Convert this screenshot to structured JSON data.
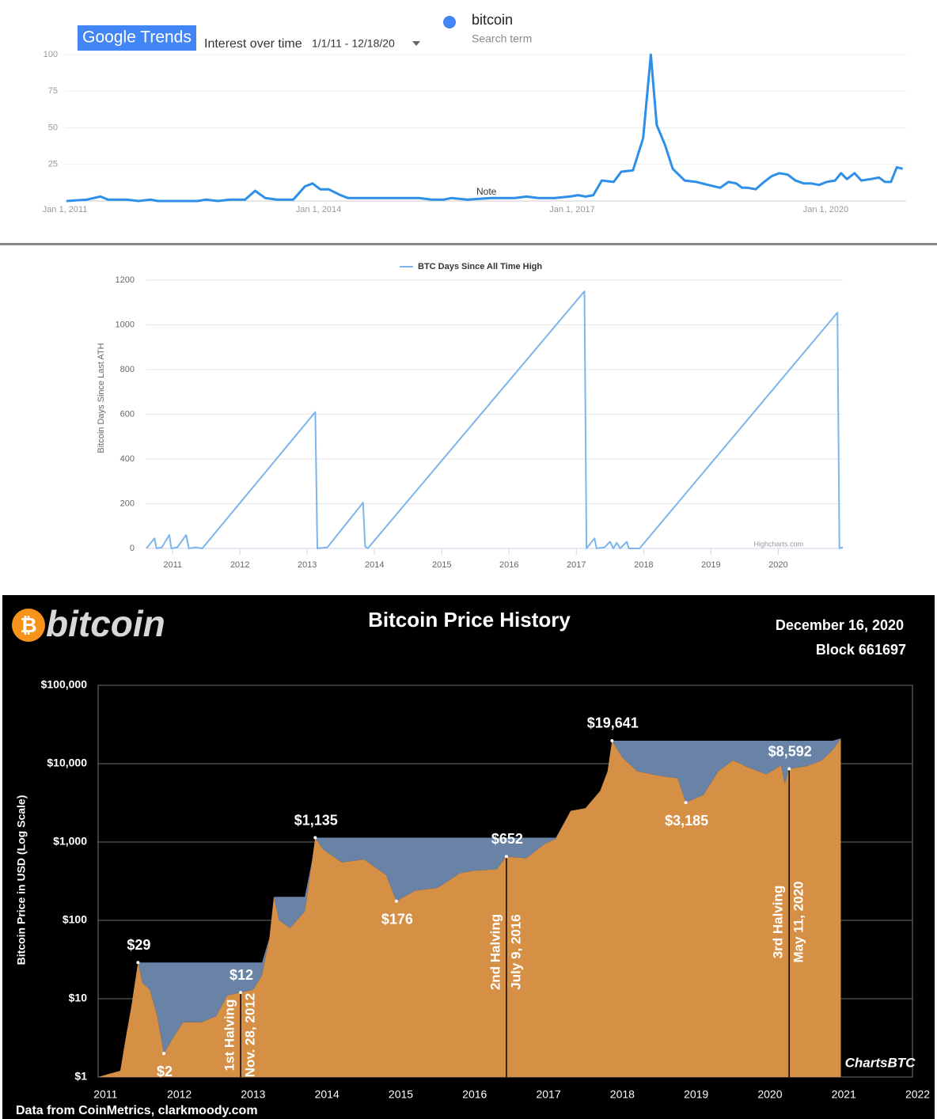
{
  "chart_data": [
    {
      "type": "line",
      "brand": "Google Trends",
      "title": "Interest over time",
      "subtitle": "1/1/11 - 12/18/20",
      "legend_caption": "Search term",
      "annotation": "Note",
      "x": [
        2011.02,
        2011.26,
        2011.42,
        2011.51,
        2011.73,
        2011.87,
        2012.01,
        2012.1,
        2012.57,
        2012.67,
        2012.81,
        2012.95,
        2013.13,
        2013.25,
        2013.37,
        2013.51,
        2013.7,
        2013.84,
        2013.93,
        2014.02,
        2014.12,
        2014.26,
        2014.35,
        2014.91,
        2015.19,
        2015.34,
        2015.48,
        2015.57,
        2015.76,
        2016.04,
        2016.32,
        2016.46,
        2016.6,
        2016.79,
        2016.97,
        2017.07,
        2017.16,
        2017.25,
        2017.35,
        2017.49,
        2017.58,
        2017.72,
        2017.84,
        2017.93,
        2018.0,
        2018.1,
        2018.19,
        2018.33,
        2018.47,
        2018.61,
        2018.75,
        2018.85,
        2018.94,
        2019.01,
        2019.08,
        2019.17,
        2019.27,
        2019.36,
        2019.45,
        2019.55,
        2019.64,
        2019.74,
        2019.83,
        2019.92,
        2020.01,
        2020.11,
        2020.18,
        2020.25,
        2020.34,
        2020.42,
        2020.53,
        2020.63,
        2020.7,
        2020.77,
        2020.84,
        2020.91
      ],
      "series": [
        {
          "name": "bitcoin",
          "color": "#2d8fe8",
          "values": [
            0,
            1,
            3,
            1,
            1,
            0,
            1,
            0,
            0,
            1,
            0,
            1,
            1,
            7,
            2,
            1,
            1,
            10,
            12,
            8,
            8,
            4,
            2,
            2,
            2,
            1,
            1,
            2,
            1,
            2,
            2,
            3,
            2,
            2,
            3,
            4,
            3,
            4,
            14,
            13,
            20,
            21,
            43,
            100,
            52,
            38,
            22,
            14,
            13,
            11,
            9,
            13,
            12,
            9,
            9,
            8,
            13,
            17,
            19,
            18,
            14,
            12,
            12,
            11,
            13,
            14,
            19,
            15,
            19,
            14,
            15,
            16,
            13,
            13,
            23,
            22
          ]
        }
      ],
      "xlim": [
        2011,
        2020.95
      ],
      "ylim": [
        0,
        100
      ],
      "yticks": [
        25,
        50,
        75,
        100
      ],
      "xticks": [
        {
          "value": 2011,
          "label": "Jan 1, 2011"
        },
        {
          "value": 2014,
          "label": "Jan 1, 2014"
        },
        {
          "value": 2017,
          "label": "Jan 1, 2017"
        },
        {
          "value": 2020,
          "label": "Jan 1, 2020"
        }
      ],
      "grid": true
    },
    {
      "type": "line",
      "ylabel": "Bitcoin Days Since Last ATH",
      "credit": "Highcharts.com",
      "x": [
        2010.61,
        2010.73,
        2010.76,
        2010.84,
        2010.95,
        2010.98,
        2011.07,
        2011.2,
        2011.24,
        2011.34,
        2011.44,
        2013.12,
        2013.15,
        2013.3,
        2013.83,
        2013.86,
        2013.9,
        2017.12,
        2017.15,
        2017.27,
        2017.3,
        2017.42,
        2017.5,
        2017.55,
        2017.6,
        2017.65,
        2017.75,
        2017.78,
        2017.94,
        2020.88,
        2020.91,
        2020.96
      ],
      "series": [
        {
          "name": "BTC Days Since All Time High",
          "color": "#7cb5ec",
          "values": [
            0,
            45,
            0,
            5,
            60,
            0,
            5,
            60,
            0,
            5,
            0,
            610,
            0,
            5,
            205,
            10,
            0,
            1150,
            0,
            45,
            0,
            5,
            30,
            0,
            25,
            0,
            30,
            0,
            0,
            1055,
            0,
            5
          ]
        }
      ],
      "xlim": [
        2010.61,
        2020.96
      ],
      "ylim": [
        0,
        1200
      ],
      "yticks": [
        0,
        200,
        400,
        600,
        800,
        1000,
        1200
      ],
      "xticks": [
        2011,
        2012,
        2013,
        2014,
        2015,
        2016,
        2017,
        2018,
        2019,
        2020
      ],
      "grid": true
    },
    {
      "type": "area",
      "log_scale": true,
      "logo_symbol": "₿",
      "logo_text": "bitcoin",
      "title": "Bitcoin Price History",
      "date": "December 16, 2020",
      "block": "Block 661697",
      "ylabel": "Bitcoin Price in USD (Log Scale)",
      "source": "Data from CoinMetrics, clarkmoody.com",
      "brand": "ChartsBTC",
      "color": "#d69046",
      "drawdown_color": "#6883a6",
      "x": [
        2010.9,
        2011.05,
        2011.2,
        2011.27,
        2011.35,
        2011.44,
        2011.5,
        2011.6,
        2011.7,
        2011.79,
        2011.9,
        2012.05,
        2012.3,
        2012.5,
        2012.65,
        2012.83,
        2013.0,
        2013.12,
        2013.22,
        2013.28,
        2013.35,
        2013.5,
        2013.7,
        2013.8,
        2013.84,
        2013.95,
        2014.2,
        2014.5,
        2014.8,
        2014.94,
        2015.2,
        2015.5,
        2015.8,
        2016.0,
        2016.3,
        2016.43,
        2016.7,
        2016.95,
        2017.1,
        2017.3,
        2017.5,
        2017.7,
        2017.8,
        2017.86,
        2018.0,
        2018.2,
        2018.5,
        2018.75,
        2018.86,
        2019.1,
        2019.3,
        2019.5,
        2019.7,
        2019.95,
        2020.15,
        2020.2,
        2020.26,
        2020.5,
        2020.7,
        2020.85,
        2020.96
      ],
      "values": [
        1,
        1.1,
        1.2,
        3,
        8,
        29,
        16,
        13,
        6,
        2,
        3,
        5,
        5,
        6,
        11,
        12,
        13,
        20,
        60,
        200,
        100,
        80,
        130,
        600,
        1135,
        800,
        550,
        600,
        380,
        176,
        240,
        260,
        400,
        430,
        450,
        652,
        620,
        950,
        1100,
        2500,
        2700,
        4500,
        8000,
        19641,
        12000,
        8000,
        7000,
        6500,
        3185,
        4000,
        8000,
        11000,
        9000,
        7300,
        9500,
        5500,
        8592,
        9300,
        11000,
        15000,
        21000
      ],
      "xlim": [
        2010.9,
        2021.93
      ],
      "ylim": [
        1,
        100000
      ],
      "yticks": [
        {
          "value": 1,
          "label": "$1"
        },
        {
          "value": 10,
          "label": "$10"
        },
        {
          "value": 100,
          "label": "$100"
        },
        {
          "value": 1000,
          "label": "$1,000"
        },
        {
          "value": 10000,
          "label": "$10,000"
        },
        {
          "value": 100000,
          "label": "$100,000"
        }
      ],
      "xticks": [
        2011,
        2012,
        2013,
        2014,
        2015,
        2016,
        2017,
        2018,
        2019,
        2020,
        2021,
        2022
      ],
      "grid": true,
      "annotations": [
        {
          "label": "$29",
          "x": 2011.44,
          "value": 29,
          "side": "above"
        },
        {
          "label": "$2",
          "x": 2011.79,
          "value": 2,
          "side": "below"
        },
        {
          "label": "$12",
          "x": 2012.83,
          "value": 12,
          "side": "above"
        },
        {
          "label": "$1,135",
          "x": 2013.84,
          "value": 1135,
          "side": "above"
        },
        {
          "label": "$176",
          "x": 2014.94,
          "value": 176,
          "side": "below"
        },
        {
          "label": "$652",
          "x": 2016.43,
          "value": 652,
          "side": "above"
        },
        {
          "label": "$19,641",
          "x": 2017.86,
          "value": 19641,
          "side": "above"
        },
        {
          "label": "$3,185",
          "x": 2018.86,
          "value": 3185,
          "side": "below"
        },
        {
          "label": "$8,592",
          "x": 2020.26,
          "value": 8592,
          "side": "above"
        }
      ],
      "halvings": [
        {
          "label": "1st Halving",
          "date": "Nov. 28, 2012",
          "x": 2012.83
        },
        {
          "label": "2nd Halving",
          "date": "July 9, 2016",
          "x": 2016.43
        },
        {
          "label": "3rd Halving",
          "date": "May 11, 2020",
          "x": 2020.26
        }
      ]
    }
  ]
}
